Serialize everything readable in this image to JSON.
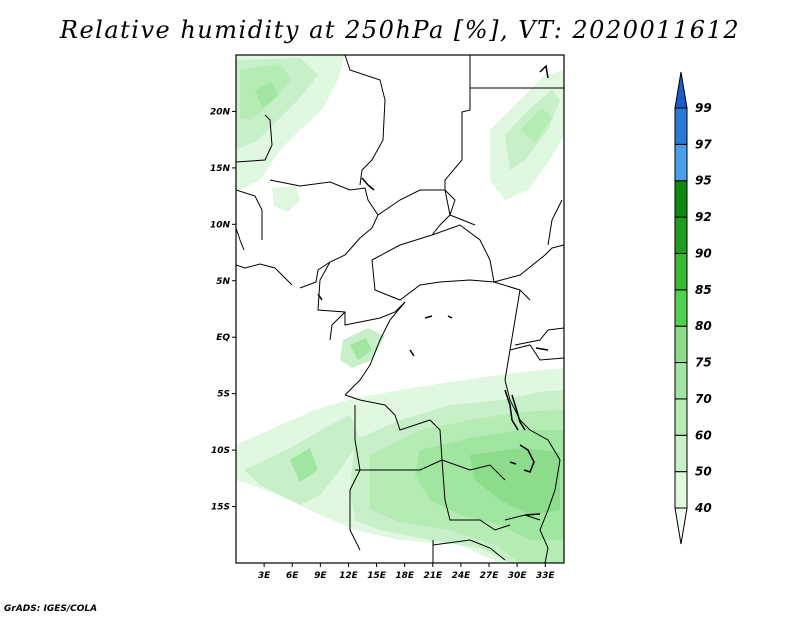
{
  "title": "Relative humidity at 250hPa [%], VT: 2020011612",
  "credit": "GrADS: IGES/COLA",
  "map": {
    "projection": "lat-lon",
    "lon_range": [
      0,
      35
    ],
    "lat_range": [
      -20,
      25
    ],
    "lon_ticks": [
      "3E",
      "6E",
      "9E",
      "12E",
      "15E",
      "18E",
      "21E",
      "24E",
      "27E",
      "30E",
      "33E"
    ],
    "lat_ticks": [
      "20N",
      "15N",
      "10N",
      "5N",
      "EQ",
      "5S",
      "10S",
      "15S"
    ],
    "background": "#ffffff",
    "border_color": "#000000"
  },
  "colorbar": {
    "orientation": "vertical",
    "levels": [
      "40",
      "50",
      "60",
      "70",
      "75",
      "80",
      "85",
      "90",
      "92",
      "95",
      "97",
      "99"
    ],
    "colors": [
      "#f0fcf0",
      "#e0f8e0",
      "#c8f0c8",
      "#b4ecb4",
      "#a0e6a0",
      "#8cdc8c",
      "#50d050",
      "#37b837",
      "#1e9e1e",
      "#0f8a0f",
      "#4a9eea",
      "#2a78d8",
      "#1a5cc8"
    ]
  }
}
